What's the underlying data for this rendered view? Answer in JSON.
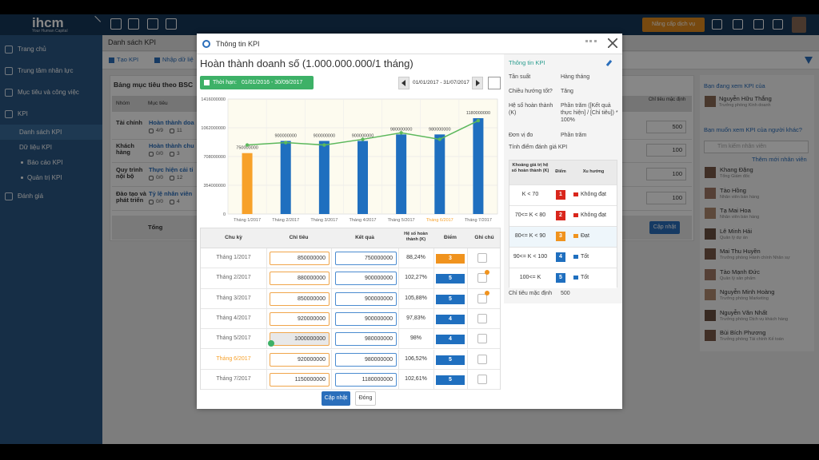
{
  "app": {
    "logo": "ihcm",
    "tagline": "Your Human Capital",
    "upgrade_button": "Nâng cấp dịch vụ"
  },
  "sidebar": {
    "items": [
      {
        "label": "Trang chủ",
        "level": 0
      },
      {
        "label": "Trung tâm nhân lực",
        "level": 0
      },
      {
        "label": "Mục tiêu và công việc",
        "level": 0
      },
      {
        "label": "KPI",
        "level": 0
      },
      {
        "label": "Danh sách KPI",
        "level": 1,
        "active": true
      },
      {
        "label": "Dữ liệu KPI",
        "level": 1
      },
      {
        "label": "Báo cáo KPI",
        "level": 2
      },
      {
        "label": "Quản trị KPI",
        "level": 2
      },
      {
        "label": "Đánh giá",
        "level": 0
      }
    ]
  },
  "page": {
    "title": "Danh sách KPI",
    "actions": [
      "Tạo KPI",
      "Nhập dữ liệ"
    ],
    "section_title": "Bảng mục tiêu theo BSC",
    "table": {
      "headers": [
        "Nhóm",
        "Mục tiêu",
        "Chỉ tiêu mặc định"
      ],
      "rows": [
        {
          "group": "Tài chính",
          "goal": "Hoàn thành doa",
          "done": "4/9",
          "comments": "11",
          "default": "500"
        },
        {
          "group": "Khách hàng",
          "goal": "Hoàn thành chu",
          "done": "0/0",
          "comments": "3",
          "default": "100"
        },
        {
          "group": "Quy trình nội bộ",
          "goal": "Thực hiện cải ti",
          "done": "0/0",
          "comments": "12",
          "default": "100"
        },
        {
          "group": "Đào tạo và phát triển",
          "goal": "Tỷ lệ nhân viên",
          "done": "0/0",
          "comments": "4",
          "default": "100"
        }
      ],
      "total": "Tổng",
      "update_button": "Cập nhật"
    }
  },
  "viewer": {
    "label": "Bạn đang xem KPI của",
    "name": "Nguyễn Hữu Thắng",
    "role": "Trưởng phòng Kinh doanh",
    "question": "Bạn muốn xem KPI của người khác?",
    "search_placeholder": "Tìm kiếm nhân viên",
    "add_link": "Thêm mới nhân viên",
    "people": [
      {
        "name": "Khang Đặng",
        "role": "Tổng Giám đốc"
      },
      {
        "name": "Tào Hồng",
        "role": "Nhân viên bán hàng"
      },
      {
        "name": "Tạ Mai Hoa",
        "role": "Nhân viên bán hàng"
      },
      {
        "name": "Lê Minh Hải",
        "role": "Quản lý dự án"
      },
      {
        "name": "Mai Thu Huyền",
        "role": "Trưởng phòng Hành chính Nhân sự"
      },
      {
        "name": "Tào Mạnh Đức",
        "role": "Quản lý sản phẩm"
      },
      {
        "name": "Nguyễn Minh Hoàng",
        "role": "Trưởng phòng Marketing"
      },
      {
        "name": "Nguyễn Văn Nhất",
        "role": "Trưởng phòng Dịch vụ khách hàng"
      },
      {
        "name": "Bùi Bích Phương",
        "role": "Trưởng phòng Tài chính Kế toán"
      }
    ]
  },
  "modal": {
    "title": "Thông tin KPI",
    "kpi_name": "Hoàn thành doanh số (1.000.000.000/1 tháng)",
    "period_label": "Thời hạn:",
    "period": "01/01/2016 - 30/09/2017",
    "range": "01/01/2017 - 31/07/2017",
    "table": {
      "headers": [
        "Chu kỳ",
        "Chỉ tiêu",
        "Kết quả",
        "Hệ số hoàn thành (K)",
        "Điểm",
        "Ghi chú"
      ],
      "rows": [
        {
          "period": "Tháng 1/2017",
          "target": 850000000,
          "result": 750000000,
          "ratio": "88,24%",
          "score": 3
        },
        {
          "period": "Tháng 2/2017",
          "target": 880000000,
          "result": 900000000,
          "ratio": "102,27%",
          "score": 5,
          "has_note": true
        },
        {
          "period": "Tháng 3/2017",
          "target": 850000000,
          "result": 900000000,
          "ratio": "105,88%",
          "score": 5,
          "has_note": true
        },
        {
          "period": "Tháng 4/2017",
          "target": 920000000,
          "result": 900000000,
          "ratio": "97,83%",
          "score": 4
        },
        {
          "period": "Tháng 5/2017",
          "target": 1000000000,
          "result": 980000000,
          "ratio": "98%",
          "score": 4,
          "confirmed": true
        },
        {
          "period": "Tháng 6/2017",
          "target": 920000000,
          "result": 980000000,
          "ratio": "106,52%",
          "score": 5
        },
        {
          "period": "Tháng 7/2017",
          "target": 1150000000,
          "result": 1180000000,
          "ratio": "102,61%",
          "score": 5
        }
      ]
    },
    "buttons": [
      "Cập nhật",
      "Đóng"
    ],
    "info": {
      "title": "Thông tin KPI",
      "fields": [
        {
          "label": "Tần suất",
          "value": "Hàng tháng"
        },
        {
          "label": "Chiều hướng tốt?",
          "value": "Tăng"
        },
        {
          "label": "Hệ số hoàn thành (K)",
          "value": "Phần trăm ([Kết quả thực hiện] / [Chỉ tiêu]) * 100%"
        },
        {
          "label": "Đơn vị đo",
          "value": "Phần trăm"
        }
      ],
      "scale_title": "Tính điểm đánh giá KPI",
      "scale_headers": [
        "Khoảng giá trị hệ số hoàn thành (K)",
        "Điểm",
        "Xu hướng"
      ],
      "scale": [
        {
          "range": "K < 70",
          "score": 1,
          "color": "#d9261c",
          "trend": "Không đạt"
        },
        {
          "range": "70<= K < 80",
          "score": 2,
          "color": "#d9261c",
          "trend": "Không đạt"
        },
        {
          "range": "80<= K < 90",
          "score": 3,
          "color": "#f0931e",
          "trend": "Đạt"
        },
        {
          "range": "90<= K < 100",
          "score": 4,
          "color": "#1f6fbf",
          "trend": "Tốt"
        },
        {
          "range": "100<= K",
          "score": 5,
          "color": "#1f6fbf",
          "trend": "Tốt"
        }
      ],
      "default_label": "Chỉ tiêu mặc định",
      "default_value": "500"
    }
  },
  "chart_data": {
    "type": "bar",
    "categories": [
      "Tháng 1/2017",
      "Tháng 2/2017",
      "Tháng 3/2017",
      "Tháng 4/2017",
      "Tháng 5/2017",
      "Tháng 6/2017",
      "Tháng 7/2017"
    ],
    "category_colors": [
      "#666666",
      "#666666",
      "#666666",
      "#666666",
      "#666666",
      "#f7a12a",
      "#666666"
    ],
    "series": [
      {
        "type": "bar",
        "values": [
          750000000,
          900000000,
          900000000,
          900000000,
          980000000,
          980000000,
          1180000000
        ],
        "colors": [
          "#f7a12a",
          "#1f6fbf",
          "#1f6fbf",
          "#1f6fbf",
          "#1f6fbf",
          "#1f6fbf",
          "#1f6fbf"
        ]
      },
      {
        "type": "line",
        "color": "#5cb85c",
        "values": [
          850000000,
          880000000,
          850000000,
          920000000,
          1000000000,
          920000000,
          1150000000
        ]
      }
    ],
    "ylim": [
      0,
      1416000000
    ],
    "yticks": [
      0,
      354000000,
      708000000,
      1062000000,
      1416000000
    ],
    "grid": true
  }
}
